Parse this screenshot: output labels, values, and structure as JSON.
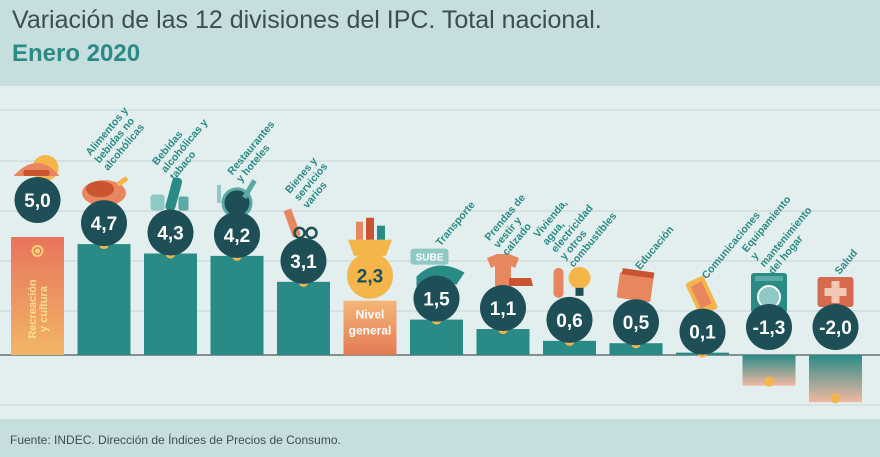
{
  "title": "Variación de las 12 divisiones del IPC. Total nacional.",
  "subtitle": "Enero 2020",
  "source": "Fuente: INDEC. Dirección de Índices de Precios de Consumo.",
  "colors": {
    "bar": "#2a8a86",
    "bar_special": "#e7865f",
    "bar_special_top": "#f4b678",
    "badge": "#1f4f56",
    "dot": "#f4b54a",
    "category_text": "#2a8a86",
    "value_text": "#ffffff",
    "header_bg": "#c6dedd",
    "plot_bg": "#e3eeee"
  },
  "chart_data": {
    "type": "bar",
    "title": "Variación de las 12 divisiones del IPC. Total nacional.",
    "subtitle": "Enero 2020",
    "xlabel": "",
    "ylabel": "",
    "ylim": [
      -2.2,
      5.4
    ],
    "grid": true,
    "bars": [
      {
        "category": "Recreación y cultura",
        "value": 5.0,
        "label": "5,0",
        "label_position": "inside",
        "icon": "sun-beach-icon",
        "special": "highlight"
      },
      {
        "category": "Alimentos y bebidas no alcohólicas",
        "value": 4.7,
        "label": "4,7",
        "icon": "roast-chicken-icon"
      },
      {
        "category": "Bebidas alcohólicas y tabaco",
        "value": 4.3,
        "label": "4,3",
        "icon": "wine-bottle-icon"
      },
      {
        "category": "Restaurantes y hoteles",
        "value": 4.2,
        "label": "4,2",
        "icon": "frying-pan-icon"
      },
      {
        "category": "Bienes y servicios varios",
        "value": 3.1,
        "label": "3,1",
        "icon": "comb-scissors-icon"
      },
      {
        "category": "Nivel general",
        "value": 2.3,
        "label": "2,3",
        "label_position": "inside",
        "icon": "shopping-basket-icon",
        "special": "general"
      },
      {
        "category": "Transporte",
        "value": 1.5,
        "label": "1,5",
        "icon": "sube-card-icon",
        "icon_text": "SUBE"
      },
      {
        "category": "Prendas de vestir y calzado",
        "value": 1.1,
        "label": "1,1",
        "icon": "tshirt-shoe-icon"
      },
      {
        "category": "Vivienda, agua, electricidad y otros combustibles",
        "value": 0.6,
        "label": "0,6",
        "icon": "lightbulb-icon"
      },
      {
        "category": "Educación",
        "value": 0.5,
        "label": "0,5",
        "icon": "book-icon"
      },
      {
        "category": "Comunicaciones",
        "value": 0.1,
        "label": "0,1",
        "icon": "mobile-phone-icon"
      },
      {
        "category": "Equipamiento y mantenimiento del hogar",
        "value": -1.3,
        "label": "-1,3",
        "icon": "washing-machine-icon"
      },
      {
        "category": "Salud",
        "value": -2.0,
        "label": "-2,0",
        "icon": "medical-kit-icon"
      }
    ]
  }
}
